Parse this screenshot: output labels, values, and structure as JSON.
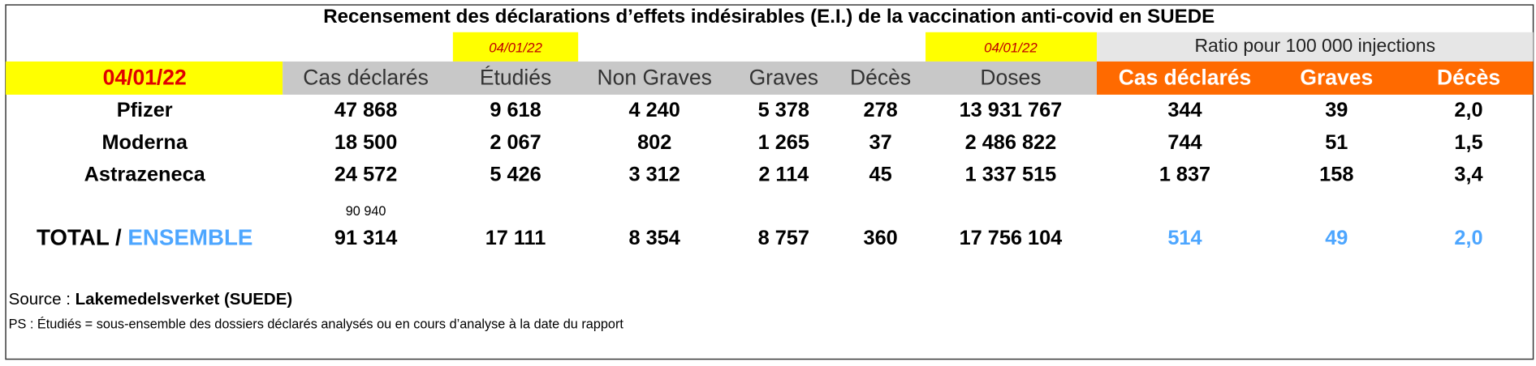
{
  "title": "Recensement des déclarations d’effets indésirables (E.I.) de la vaccination anti-covid en SUEDE",
  "top_row": {
    "etudies_date": "04/01/22",
    "doses_date": "04/01/22",
    "ratio_header": "Ratio pour 100 000 injections"
  },
  "header": [
    "04/01/22",
    "Cas déclarés",
    "Étudiés",
    "Non Graves",
    "Graves",
    "Décès",
    "Doses",
    "Cas déclarés",
    "Graves",
    "Décès"
  ],
  "rows": [
    [
      "Pfizer",
      "47 868",
      "9 618",
      "4 240",
      "5 378",
      "278",
      "13 931 767",
      "344",
      "39",
      "2,0"
    ],
    [
      "Moderna",
      "18 500",
      "2 067",
      "802",
      "1 265",
      "37",
      "2 486 822",
      "744",
      "51",
      "1,5"
    ],
    [
      "Astrazeneca",
      "24 572",
      "5 426",
      "3 312",
      "2 114",
      "45",
      "1 337 515",
      "1 837",
      "158",
      "3,4"
    ]
  ],
  "total": {
    "label": "TOTAL / ",
    "label_blue": "ENSEMBLE",
    "note": "90 940",
    "values": [
      "91 314",
      "17 111",
      "8 354",
      "8 757",
      "360",
      "17 756 104",
      "514",
      "49",
      "2,0"
    ]
  },
  "source": {
    "prefix": "Source : ",
    "name": "Lakemedelsverket (SUEDE)"
  },
  "ps": "PS : Étudiés = sous-ensemble des dossiers déclarés analysés ou en cours d’analyse à la date du rapport"
}
